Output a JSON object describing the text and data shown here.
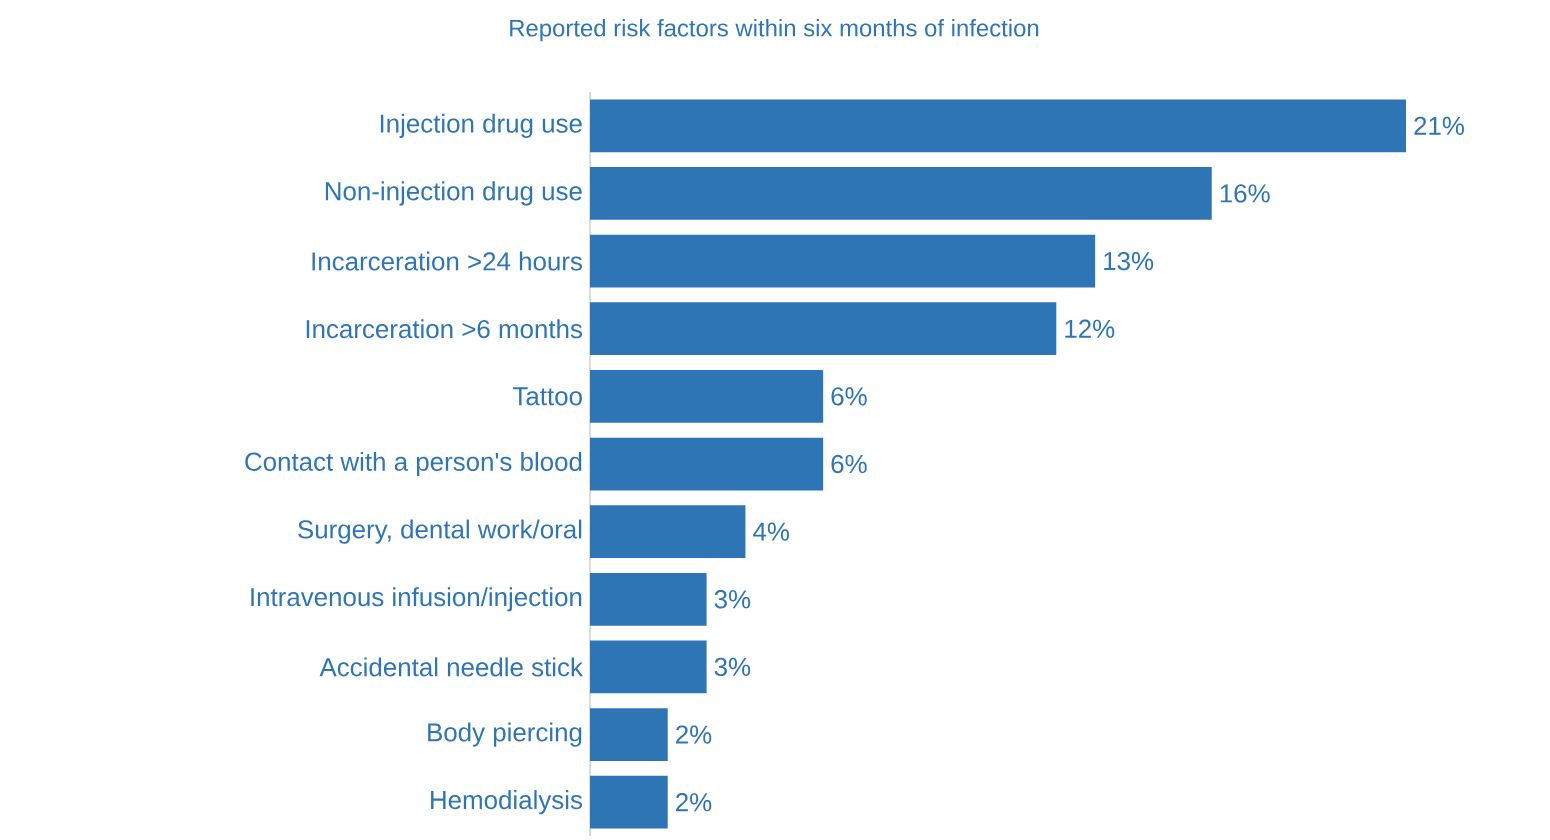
{
  "chart_data": {
    "type": "bar",
    "orientation": "horizontal",
    "title": "Reported risk factors within six months of infection",
    "categories": [
      "Injection drug use",
      "Non-injection drug use",
      "Incarceration >24 hours",
      "Incarceration >6 months",
      "Tattoo",
      "Contact with a person's blood",
      "Surgery, dental work/oral",
      "Intravenous infusion/injection",
      "Accidental needle stick",
      "Body piercing",
      "Hemodialysis"
    ],
    "values": [
      21,
      16,
      13,
      12,
      6,
      6,
      4,
      3,
      3,
      2,
      2
    ],
    "value_labels": [
      "21%",
      "16%",
      "13%",
      "12%",
      "6%",
      "6%",
      "4%",
      "3%",
      "3%",
      "2%",
      "2%"
    ],
    "color": "#2e75b6"
  }
}
